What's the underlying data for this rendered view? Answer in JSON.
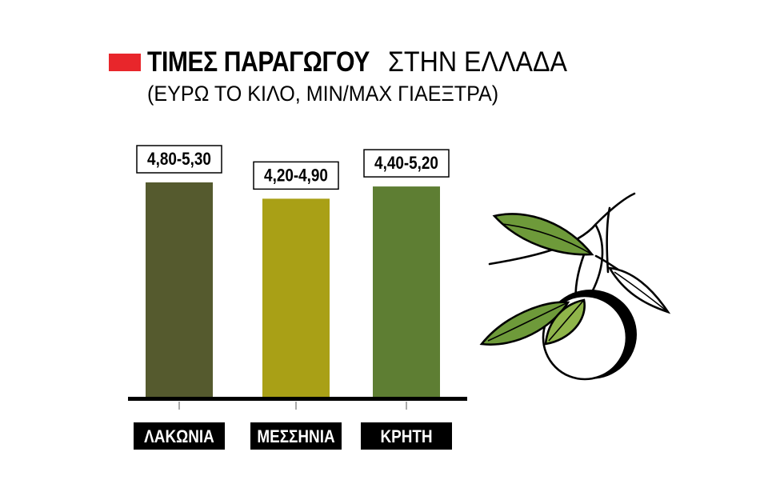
{
  "title": {
    "bold": "ΤΙΜΕΣ ΠΑΡΑΓΩΓΟΥ",
    "light": "ΣΤΗΝ ΕΛΛΑΔΑ",
    "subtitle": "(ΕΥΡΩ ΤΟ ΚΙΛΟ, MIN/MAX ΓΙΑΕΞΤΡΑ)"
  },
  "colors": {
    "accent": "#e8262b",
    "bars": [
      "#555a2e",
      "#a9a016",
      "#5e7e33"
    ],
    "label_bg": "#000000",
    "olive_leaf": "#5e8d2e",
    "olive_leaf_light": "#8fb54a"
  },
  "icons": {
    "illustration": "olive-branch-icon"
  },
  "chart_data": {
    "type": "bar",
    "categories": [
      "ΛΑΚΩΝΙΑ",
      "ΜΕΣΣΗΝΙΑ",
      "ΚΡΗΤΗ"
    ],
    "values": [
      5.3,
      4.9,
      5.2
    ],
    "range_labels": [
      "4,80-5,30",
      "4,20-4,90",
      "4,40-5,20"
    ],
    "ranges": [
      [
        4.8,
        5.3
      ],
      [
        4.2,
        4.9
      ],
      [
        4.4,
        5.2
      ]
    ],
    "title": "ΤΙΜΕΣ ΠΑΡΑΓΩΓΟΥ ΣΤΗΝ ΕΛΛΑΔΑ",
    "subtitle": "(ΕΥΡΩ ΤΟ ΚΙΛΟ, MIN/MAX ΓΙΑΕΞΤΡΑ)",
    "xlabel": "",
    "ylabel": "",
    "ylim": [
      0,
      5.3
    ],
    "grid": false,
    "legend": "none"
  }
}
